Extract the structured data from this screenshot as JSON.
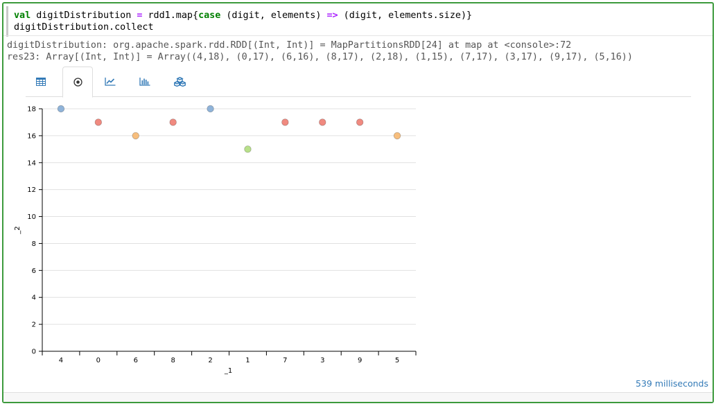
{
  "code": {
    "line1": {
      "kw_val": "val",
      "name": " digitDistribution ",
      "op_eq": "=",
      "expr1": " rdd1.map{",
      "kw_case": "case",
      "expr2": " (digit, elements) ",
      "op_arrow": "=>",
      "expr3": " (digit, elements.size)}"
    },
    "line2": "digitDistribution.collect"
  },
  "output": {
    "line1": "digitDistribution: org.apache.spark.rdd.RDD[(Int, Int)] = MapPartitionsRDD[24] at map at <console>:72",
    "line2": "res23: Array[(Int, Int)] = Array((4,18), (0,17), (6,16), (8,17), (2,18), (1,15), (7,17), (3,17), (9,17), (5,16))"
  },
  "tabs": [
    {
      "icon": "table-icon",
      "active": false
    },
    {
      "icon": "scatter-icon",
      "active": true
    },
    {
      "icon": "line-chart-icon",
      "active": false
    },
    {
      "icon": "bar-chart-icon",
      "active": false
    },
    {
      "icon": "cubes-icon",
      "active": false
    }
  ],
  "chart_data": {
    "type": "scatter",
    "categories": [
      "4",
      "0",
      "6",
      "8",
      "2",
      "1",
      "7",
      "3",
      "9",
      "5"
    ],
    "values": [
      18,
      17,
      16,
      17,
      18,
      15,
      17,
      17,
      17,
      16
    ],
    "point_colors": [
      "#8fb3d9",
      "#f08a80",
      "#f7be7d",
      "#f08a80",
      "#8fb3d9",
      "#b8e08a",
      "#f08a80",
      "#f08a80",
      "#f08a80",
      "#f7be7d"
    ],
    "xlabel": "_1",
    "ylabel": "_2",
    "ylim": [
      0,
      18
    ],
    "yticks": [
      0,
      2,
      4,
      6,
      8,
      10,
      12,
      14,
      16,
      18
    ],
    "grid": true
  },
  "timing": "539 milliseconds",
  "colors": {
    "cell_border": "#3c9a3c",
    "link_blue": "#337ab7"
  }
}
